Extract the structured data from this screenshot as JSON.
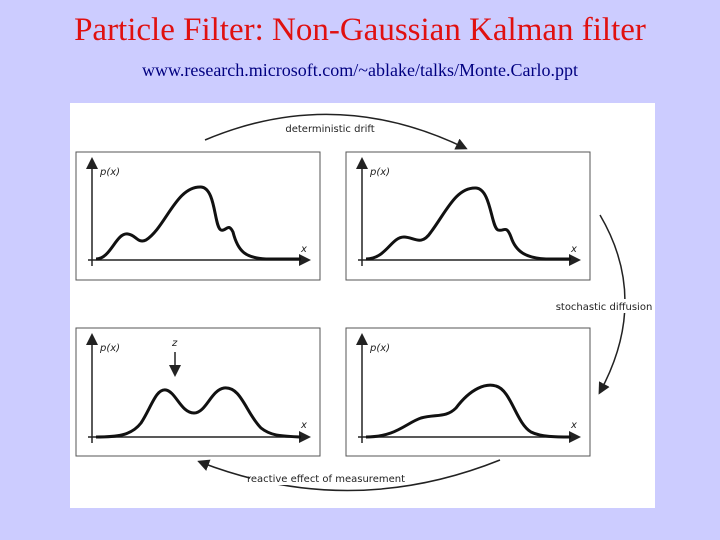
{
  "header": {
    "title": "Particle Filter: Non-Gaussian Kalman filter",
    "subtitle": "www.research.microsoft.com/~ablake/talks/Monte.Carlo.ppt"
  },
  "transitions": {
    "top": "deterministic drift",
    "right": "stochastic diffusion",
    "bottom": "reactive effect of measurement"
  },
  "panels": [
    {
      "y_label": "p(x)",
      "x_label": "x"
    },
    {
      "y_label": "p(x)",
      "x_label": "x"
    },
    {
      "y_label": "p(x)",
      "x_label": "x",
      "marker": "z"
    },
    {
      "y_label": "p(x)",
      "x_label": "x"
    }
  ]
}
